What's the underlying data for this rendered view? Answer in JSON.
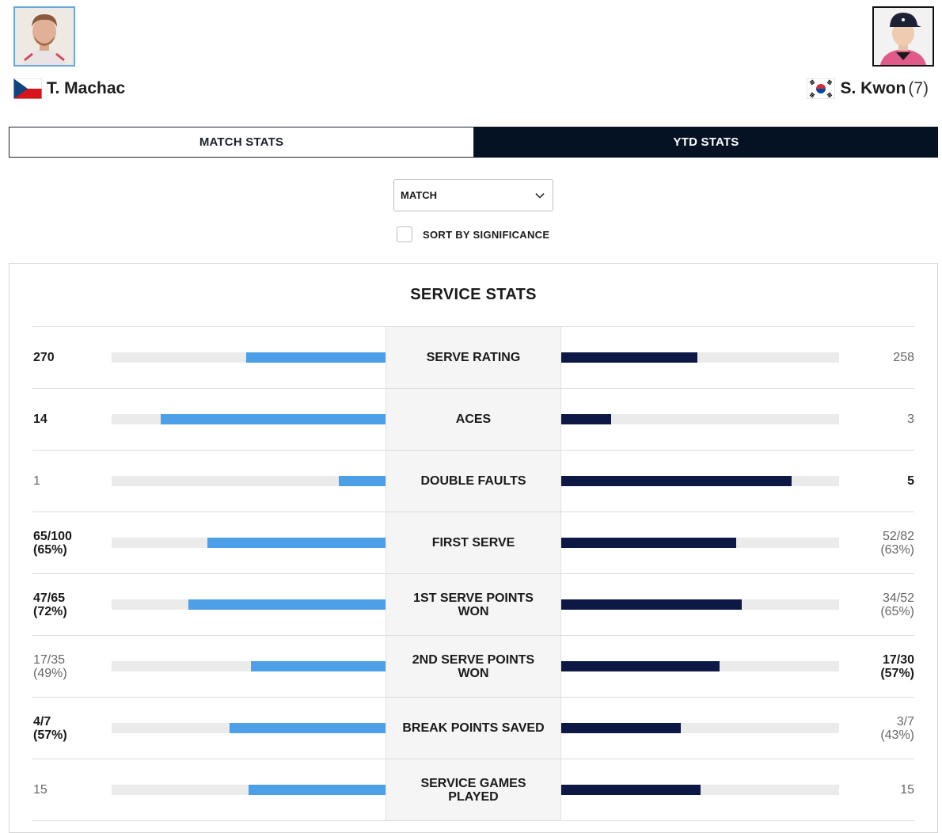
{
  "players": {
    "left": {
      "name": "T. Machac",
      "flag": "czech-republic",
      "seed": ""
    },
    "right": {
      "name": "S. Kwon",
      "flag": "south-korea",
      "seed": "(7)"
    }
  },
  "tabs": [
    {
      "label": "MATCH STATS",
      "active": false
    },
    {
      "label": "YTD STATS",
      "active": true
    }
  ],
  "filter": {
    "selected": "MATCH"
  },
  "sort": {
    "label": "SORT BY SIGNIFICANCE",
    "checked": false
  },
  "section": {
    "title": "SERVICE STATS"
  },
  "colors": {
    "left_bar": "#4da0e8",
    "right_bar": "#0d1845",
    "track": "#ebebeb",
    "active_tab": "#051224"
  },
  "stats": [
    {
      "label": "SERVE RATING",
      "left": "270",
      "right": "258",
      "left_bold": true,
      "right_bold": false,
      "left_fill": 0.51,
      "right_fill": 0.49
    },
    {
      "label": "ACES",
      "left": "14",
      "right": "3",
      "left_bold": true,
      "right_bold": false,
      "left_fill": 0.82,
      "right_fill": 0.18
    },
    {
      "label": "DOUBLE FAULTS",
      "left": "1",
      "right": "5",
      "left_bold": false,
      "right_bold": true,
      "left_fill": 0.17,
      "right_fill": 0.83
    },
    {
      "label": "FIRST SERVE",
      "left": "65/100\n(65%)",
      "right": "52/82\n(63%)",
      "left_bold": true,
      "right_bold": false,
      "left_fill": 0.65,
      "right_fill": 0.63
    },
    {
      "label": "1ST SERVE POINTS WON",
      "left": "47/65\n(72%)",
      "right": "34/52\n(65%)",
      "left_bold": true,
      "right_bold": false,
      "left_fill": 0.72,
      "right_fill": 0.65
    },
    {
      "label": "2ND SERVE POINTS WON",
      "left": "17/35\n(49%)",
      "right": "17/30\n(57%)",
      "left_bold": false,
      "right_bold": true,
      "left_fill": 0.49,
      "right_fill": 0.57
    },
    {
      "label": "BREAK POINTS SAVED",
      "left": "4/7\n(57%)",
      "right": "3/7\n(43%)",
      "left_bold": true,
      "right_bold": false,
      "left_fill": 0.57,
      "right_fill": 0.43
    },
    {
      "label": "SERVICE GAMES PLAYED",
      "left": "15",
      "right": "15",
      "left_bold": false,
      "right_bold": false,
      "left_fill": 0.5,
      "right_fill": 0.5
    }
  ]
}
